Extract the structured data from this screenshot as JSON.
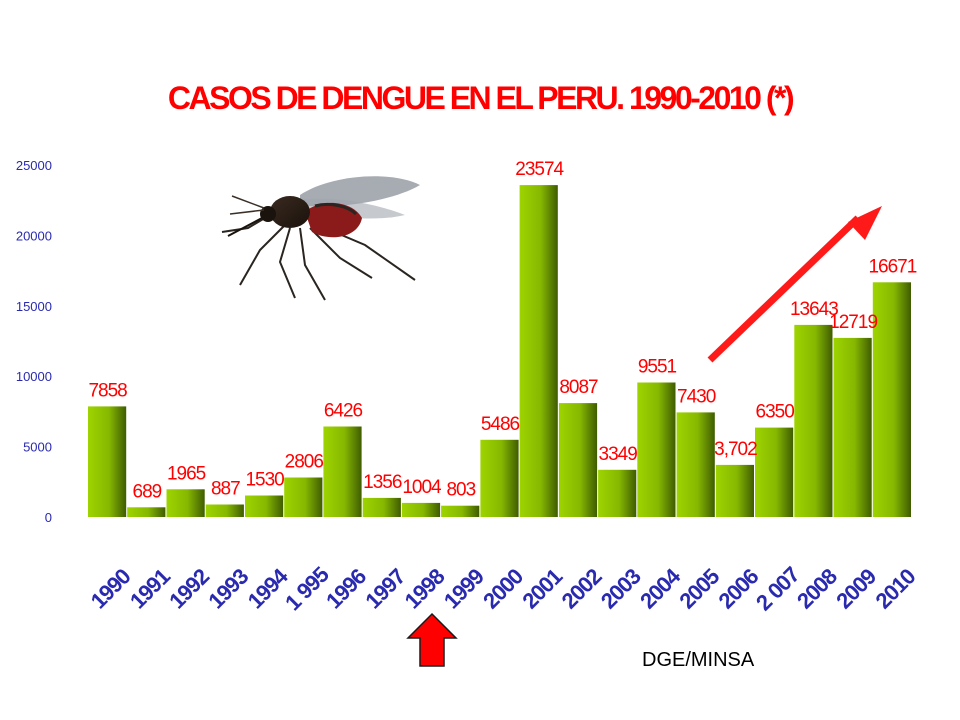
{
  "chart_data": {
    "type": "bar",
    "title": "CASOS DE DENGUE  EN EL PERU. 1990-2010 (*)",
    "xlabel": "",
    "ylabel": "",
    "ylim": [
      0,
      25000
    ],
    "yticks": [
      "0",
      "5000",
      "10000",
      "15000",
      "20000",
      "25000"
    ],
    "categories": [
      "1990",
      "1991",
      "1992",
      "1993",
      "1994",
      "1 995",
      "1996",
      "1997",
      "1998",
      "1999",
      "2000",
      "2001",
      "2002",
      "2003",
      "2004",
      "2005",
      "2006",
      "2 007",
      "2008",
      "2009",
      "2010"
    ],
    "values": [
      7858,
      689,
      1965,
      887,
      1530,
      2806,
      6426,
      1356,
      1004,
      803,
      5486,
      23574,
      8087,
      3349,
      9551,
      7430,
      3702,
      6350,
      13643,
      12719,
      16671
    ],
    "value_labels": [
      "7858",
      "689",
      "1965",
      "887",
      "1530",
      "2806",
      "6426",
      "1356",
      "1004",
      "803",
      "5486",
      "23574",
      "8087",
      "3349",
      "9551",
      "7430",
      "3,702",
      "6350",
      "13643",
      "12719",
      "16671"
    ],
    "grid": false,
    "legend": "none",
    "colors": {
      "bar": "#8fc400",
      "bar_dark": "#4a6a00",
      "value_label": "#ff0000",
      "category_label": "#2a2ab0",
      "axis_label": "#2a2ab0",
      "arrow": "#ff0000"
    }
  },
  "annotations": {
    "trend_arrow": "red-diagonal-arrow",
    "marker_arrow": "red-up-arrow",
    "image": "mosquito-illustration"
  },
  "source": "DGE/MINSA"
}
